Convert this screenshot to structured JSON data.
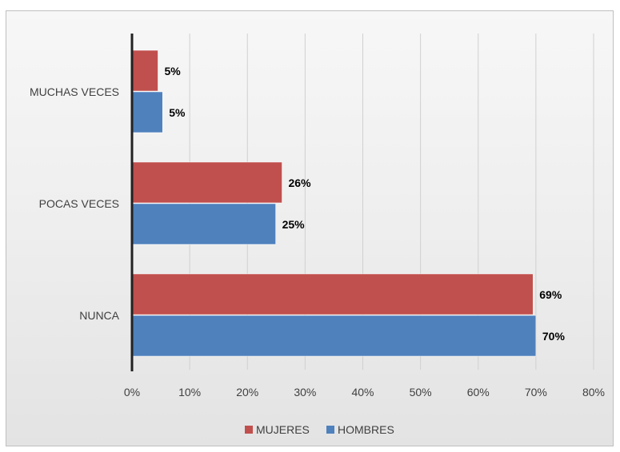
{
  "chart_data": {
    "type": "bar",
    "orientation": "horizontal",
    "title": "",
    "categories": [
      "MUCHAS VECES",
      "POCAS VECES",
      "NUNCA"
    ],
    "series": [
      {
        "name": "MUJERES",
        "color": "#c0504d",
        "values": [
          0.045,
          0.26,
          0.695
        ],
        "labels": [
          "5%",
          "26%",
          "69%"
        ]
      },
      {
        "name": "HOMBRES",
        "color": "#4f81bd",
        "values": [
          0.053,
          0.249,
          0.7
        ],
        "labels": [
          "5%",
          "25%",
          "70%"
        ]
      }
    ],
    "xlim": [
      0,
      0.8
    ],
    "x_ticks": [
      0,
      0.1,
      0.2,
      0.3,
      0.4,
      0.5,
      0.6,
      0.7,
      0.8
    ],
    "x_tick_labels": [
      "0%",
      "10%",
      "20%",
      "30%",
      "40%",
      "50%",
      "60%",
      "70%",
      "80%"
    ],
    "grid": true,
    "legend_position": "bottom"
  }
}
